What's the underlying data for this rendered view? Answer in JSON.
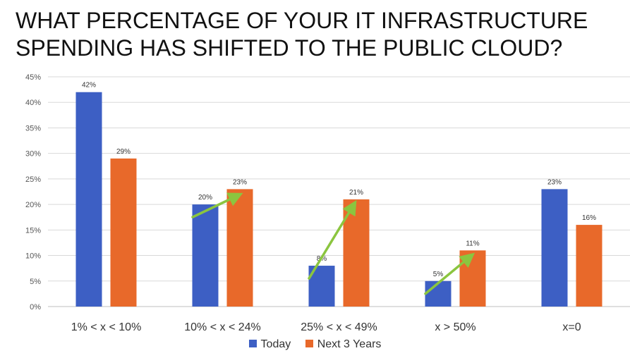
{
  "title_lines": [
    "WHAT PERCENTAGE OF YOUR IT INFRASTRUCTURE",
    "SPENDING HAS SHIFTED TO THE PUBLIC CLOUD?"
  ],
  "chart_data": {
    "type": "bar",
    "title": "WHAT PERCENTAGE OF YOUR IT INFRASTRUCTURE SPENDING HAS SHIFTED TO THE PUBLIC CLOUD?",
    "categories": [
      "1% < x < 10%",
      "10% < x < 24%",
      "25% < x < 49%",
      "x > 50%",
      "x=0"
    ],
    "series": [
      {
        "name": "Today",
        "values": [
          42,
          20,
          8,
          5,
          23
        ],
        "labels": [
          "42%",
          "20%",
          "8%",
          "5%",
          "23%"
        ],
        "color": "#3d5fc4"
      },
      {
        "name": "Next 3 Years",
        "values": [
          29,
          23,
          21,
          11,
          16
        ],
        "labels": [
          "29%",
          "23%",
          "21%",
          "11%",
          "16%"
        ],
        "color": "#e8692a"
      }
    ],
    "ylim": [
      0,
      45
    ],
    "yticks": [
      0,
      5,
      10,
      15,
      20,
      25,
      30,
      35,
      40,
      45
    ],
    "ytick_labels": [
      "0%",
      "5%",
      "10%",
      "15%",
      "20%",
      "25%",
      "30%",
      "35%",
      "40%",
      "45%"
    ],
    "xlabel": "",
    "ylabel": "",
    "grid": true,
    "legend_position": "bottom",
    "arrows": {
      "categories": [
        "10% < x < 24%",
        "25% < x < 49%",
        "x > 50%"
      ],
      "color": "#8bc53f"
    }
  }
}
